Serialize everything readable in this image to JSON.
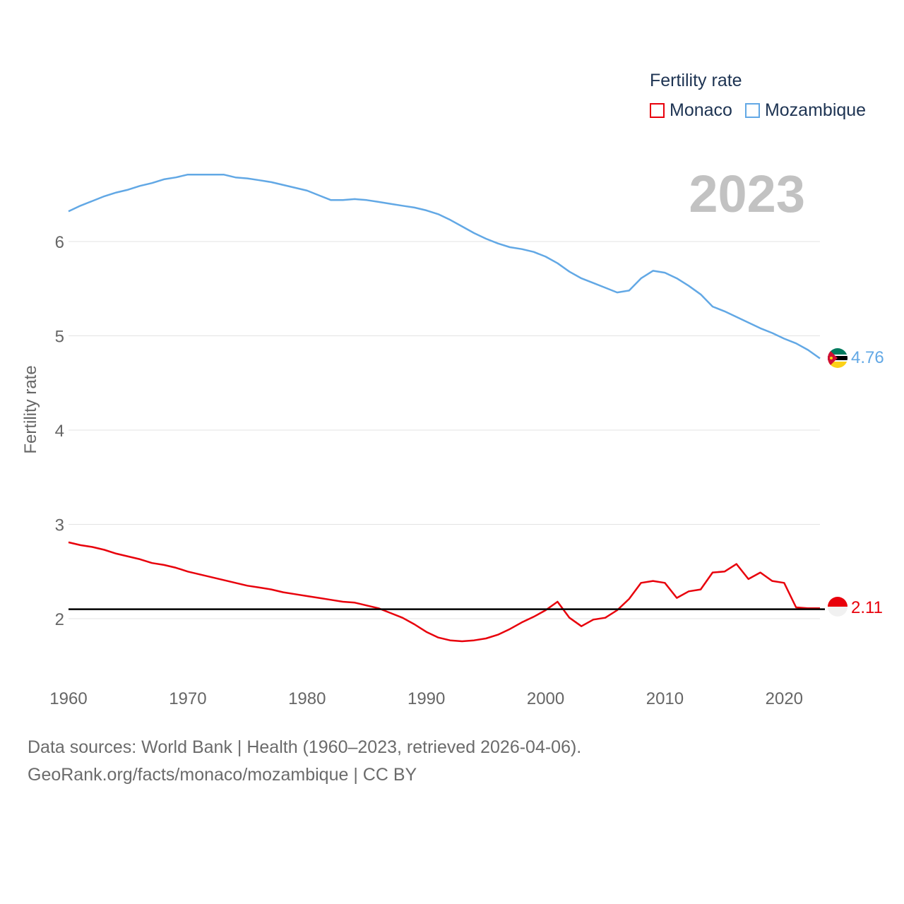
{
  "legend": {
    "title": "Fertility rate",
    "items": [
      {
        "label": "Monaco",
        "color": "#e8000b"
      },
      {
        "label": "Mozambique",
        "color": "#62a8e5"
      }
    ]
  },
  "footer": {
    "line1": "Data sources: World Bank | Health (1960–2023, retrieved 2026-04-06).",
    "line2": "GeoRank.org/facts/monaco/mozambique | CC BY"
  },
  "chart_data": {
    "type": "line",
    "title": "2023",
    "xlabel": "",
    "ylabel": "Fertility rate",
    "xlim": [
      1960,
      2023
    ],
    "ylim": [
      1.5,
      7.0
    ],
    "x_ticks": [
      1960,
      1970,
      1980,
      1990,
      2000,
      2010,
      2020
    ],
    "y_ticks": [
      2,
      3,
      4,
      5,
      6
    ],
    "reference_line": {
      "y": 2.1,
      "color": "#000000"
    },
    "x": [
      1960,
      1961,
      1962,
      1963,
      1964,
      1965,
      1966,
      1967,
      1968,
      1969,
      1970,
      1971,
      1972,
      1973,
      1974,
      1975,
      1976,
      1977,
      1978,
      1979,
      1980,
      1981,
      1982,
      1983,
      1984,
      1985,
      1986,
      1987,
      1988,
      1989,
      1990,
      1991,
      1992,
      1993,
      1994,
      1995,
      1996,
      1997,
      1998,
      1999,
      2000,
      2001,
      2002,
      2003,
      2004,
      2005,
      2006,
      2007,
      2008,
      2009,
      2010,
      2011,
      2012,
      2013,
      2014,
      2015,
      2016,
      2017,
      2018,
      2019,
      2020,
      2021,
      2022,
      2023
    ],
    "series": [
      {
        "name": "Mozambique",
        "color": "#62a8e5",
        "end_label": "4.76",
        "values": [
          6.32,
          6.38,
          6.43,
          6.48,
          6.52,
          6.55,
          6.59,
          6.62,
          6.66,
          6.68,
          6.71,
          6.71,
          6.71,
          6.71,
          6.68,
          6.67,
          6.65,
          6.63,
          6.6,
          6.57,
          6.54,
          6.49,
          6.44,
          6.44,
          6.45,
          6.44,
          6.42,
          6.4,
          6.38,
          6.36,
          6.33,
          6.29,
          6.23,
          6.16,
          6.09,
          6.03,
          5.98,
          5.94,
          5.92,
          5.89,
          5.84,
          5.77,
          5.68,
          5.61,
          5.56,
          5.51,
          5.46,
          5.48,
          5.61,
          5.69,
          5.67,
          5.61,
          5.53,
          5.44,
          5.31,
          5.26,
          5.2,
          5.14,
          5.08,
          5.03,
          4.97,
          4.92,
          4.85,
          4.76
        ]
      },
      {
        "name": "Monaco",
        "color": "#e8000b",
        "end_label": "2.11",
        "values": [
          2.81,
          2.78,
          2.76,
          2.73,
          2.69,
          2.66,
          2.63,
          2.59,
          2.57,
          2.54,
          2.5,
          2.47,
          2.44,
          2.41,
          2.38,
          2.35,
          2.33,
          2.31,
          2.28,
          2.26,
          2.24,
          2.22,
          2.2,
          2.18,
          2.17,
          2.14,
          2.11,
          2.06,
          2.01,
          1.94,
          1.86,
          1.8,
          1.77,
          1.76,
          1.77,
          1.79,
          1.83,
          1.89,
          1.96,
          2.02,
          2.09,
          2.18,
          2.01,
          1.92,
          1.99,
          2.01,
          2.09,
          2.21,
          2.38,
          2.4,
          2.38,
          2.22,
          2.29,
          2.31,
          2.49,
          2.5,
          2.58,
          2.42,
          2.49,
          2.4,
          2.38,
          2.12,
          2.11,
          2.11
        ]
      }
    ]
  }
}
